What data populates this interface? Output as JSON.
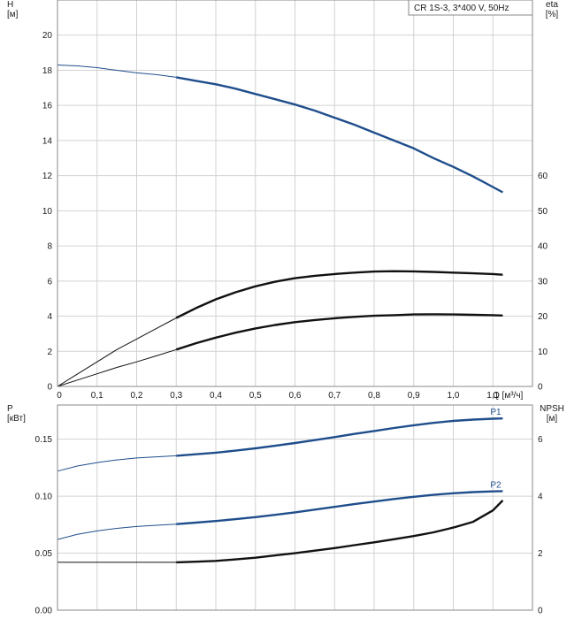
{
  "pump_label": "CR 1S-3, 3*400 V, 50Hz",
  "colors": {
    "blue": "#1f4e8c",
    "black": "#111111",
    "grid": "#d2d2d2",
    "frame": "#8a8a8a"
  },
  "chart_data": [
    {
      "type": "line",
      "panel": "top",
      "title": "CR 1S-3, 3*400 V, 50Hz",
      "xlabel": "Q [м³/ч]",
      "xlim": [
        0,
        1.2
      ],
      "x_ticks": [
        "0",
        "0,1",
        "0,2",
        "0,3",
        "0,4",
        "0,5",
        "0,6",
        "0,7",
        "0,8",
        "0,9",
        "1,0",
        "1,1"
      ],
      "x_unit_label": "Q [м³/ч]",
      "left_axis": {
        "label_line1": "H",
        "label_line2": "[м]",
        "ylim": [
          0,
          22
        ],
        "ticks": [
          "0",
          "2",
          "4",
          "6",
          "8",
          "10",
          "12",
          "14",
          "16",
          "18",
          "20"
        ]
      },
      "right_axis": {
        "label_line1": "eta",
        "label_line2": "[%]",
        "ylim": [
          0,
          110
        ],
        "ticks": [
          "0",
          "10",
          "20",
          "30",
          "40",
          "50",
          "60"
        ]
      },
      "grid": true,
      "series": [
        {
          "id": "H",
          "axis": "left",
          "color": "#1f4e8c",
          "x": [
            0,
            0.05,
            0.1,
            0.15,
            0.2,
            0.25,
            0.3,
            0.35,
            0.4,
            0.45,
            0.5,
            0.55,
            0.6,
            0.65,
            0.7,
            0.75,
            0.8,
            0.85,
            0.9,
            0.95,
            1.0,
            1.05,
            1.1,
            1.125
          ],
          "y": [
            18.3,
            18.25,
            18.15,
            18.0,
            17.85,
            17.75,
            17.6,
            17.4,
            17.2,
            16.95,
            16.65,
            16.35,
            16.05,
            15.7,
            15.3,
            14.9,
            14.45,
            14.0,
            13.55,
            13.0,
            12.5,
            11.95,
            11.35,
            11.05
          ]
        },
        {
          "id": "eta_pump",
          "axis": "right",
          "color": "#111111",
          "x": [
            0,
            0.05,
            0.1,
            0.15,
            0.2,
            0.25,
            0.3,
            0.35,
            0.4,
            0.45,
            0.5,
            0.55,
            0.6,
            0.65,
            0.7,
            0.75,
            0.8,
            0.85,
            0.9,
            0.95,
            1.0,
            1.05,
            1.1,
            1.125
          ],
          "y": [
            0,
            3.5,
            7,
            10.5,
            13.5,
            16.5,
            19.5,
            22.3,
            24.8,
            26.8,
            28.5,
            29.8,
            30.8,
            31.5,
            32.0,
            32.4,
            32.7,
            32.8,
            32.75,
            32.6,
            32.4,
            32.2,
            32.0,
            31.8
          ]
        },
        {
          "id": "eta_total",
          "axis": "right",
          "color": "#111111",
          "x": [
            0,
            0.05,
            0.1,
            0.15,
            0.2,
            0.25,
            0.3,
            0.35,
            0.4,
            0.45,
            0.5,
            0.55,
            0.6,
            0.65,
            0.7,
            0.75,
            0.8,
            0.85,
            0.9,
            0.95,
            1.0,
            1.05,
            1.1,
            1.125
          ],
          "y": [
            0,
            1.8,
            3.6,
            5.4,
            7.0,
            8.7,
            10.5,
            12.3,
            13.9,
            15.3,
            16.5,
            17.5,
            18.3,
            18.9,
            19.4,
            19.8,
            20.1,
            20.3,
            20.5,
            20.55,
            20.5,
            20.4,
            20.3,
            20.2
          ]
        }
      ]
    },
    {
      "type": "line",
      "panel": "bottom",
      "xlim": [
        0,
        1.2
      ],
      "left_axis": {
        "label_line1": "P",
        "label_line2": "[кВт]",
        "ylim": [
          0,
          0.18
        ],
        "ticks": [
          "0.00",
          "0.05",
          "0.10",
          "0.15"
        ]
      },
      "right_axis": {
        "label_line1": "NPSH",
        "label_line2": "[м]",
        "ylim": [
          0,
          7.2
        ],
        "ticks": [
          "0",
          "2",
          "4",
          "6"
        ]
      },
      "grid": true,
      "series": [
        {
          "id": "P1",
          "name": "P1",
          "axis": "left",
          "color": "#1f4e8c",
          "x": [
            0,
            0.05,
            0.1,
            0.15,
            0.2,
            0.25,
            0.3,
            0.35,
            0.4,
            0.45,
            0.5,
            0.55,
            0.6,
            0.65,
            0.7,
            0.75,
            0.8,
            0.85,
            0.9,
            0.95,
            1.0,
            1.05,
            1.1,
            1.125
          ],
          "y": [
            0.122,
            0.1265,
            0.1295,
            0.1318,
            0.1335,
            0.1345,
            0.1355,
            0.1368,
            0.1382,
            0.14,
            0.142,
            0.1442,
            0.1466,
            0.1492,
            0.1518,
            0.1546,
            0.1572,
            0.1598,
            0.1622,
            0.1643,
            0.166,
            0.1672,
            0.168,
            0.1682
          ]
        },
        {
          "id": "P2",
          "name": "P2",
          "axis": "left",
          "color": "#1f4e8c",
          "x": [
            0,
            0.05,
            0.1,
            0.15,
            0.2,
            0.25,
            0.3,
            0.35,
            0.4,
            0.45,
            0.5,
            0.55,
            0.6,
            0.65,
            0.7,
            0.75,
            0.8,
            0.85,
            0.9,
            0.95,
            1.0,
            1.05,
            1.1,
            1.125
          ],
          "y": [
            0.062,
            0.0665,
            0.0695,
            0.0718,
            0.0734,
            0.0745,
            0.0755,
            0.0768,
            0.0782,
            0.0798,
            0.0816,
            0.0836,
            0.0858,
            0.0882,
            0.0906,
            0.093,
            0.0953,
            0.0975,
            0.0995,
            0.1012,
            0.1026,
            0.1036,
            0.1042,
            0.1044
          ]
        },
        {
          "id": "NPSH",
          "axis": "right",
          "color": "#111111",
          "x": [
            0,
            0.3,
            0.35,
            0.4,
            0.45,
            0.5,
            0.55,
            0.6,
            0.65,
            0.7,
            0.75,
            0.8,
            0.85,
            0.9,
            0.95,
            1.0,
            1.05,
            1.1,
            1.125
          ],
          "y": [
            1.68,
            1.68,
            1.7,
            1.73,
            1.78,
            1.84,
            1.92,
            2.0,
            2.09,
            2.18,
            2.28,
            2.38,
            2.49,
            2.6,
            2.73,
            2.9,
            3.1,
            3.5,
            3.85
          ]
        }
      ]
    }
  ]
}
